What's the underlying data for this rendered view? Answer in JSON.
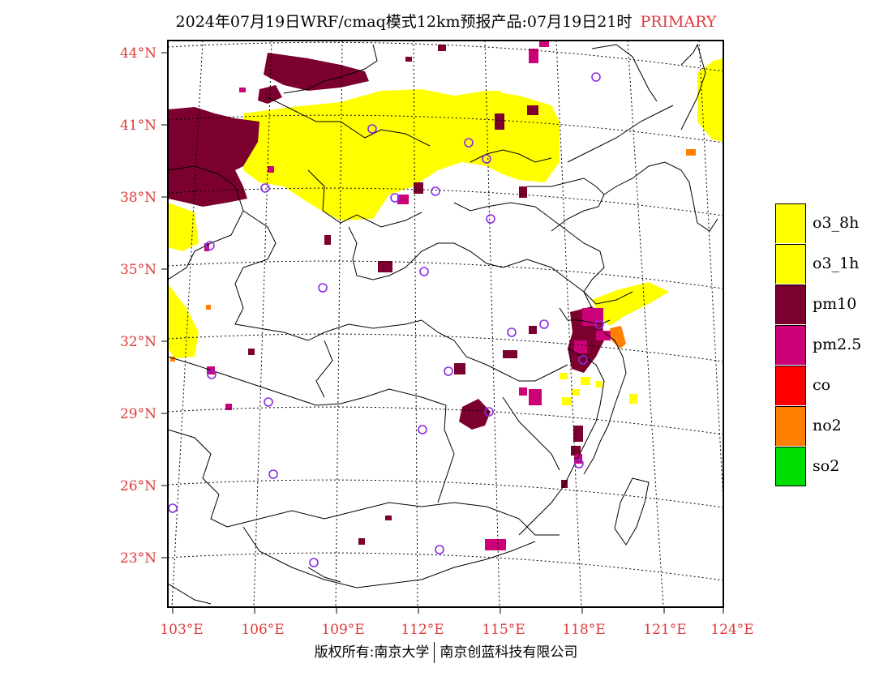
{
  "title": {
    "text": "2024年07月19日WRF/cmaq模式12km预报产品:07月19日21时",
    "tag": "PRIMARY"
  },
  "axes": {
    "lat_labels": [
      "44°N",
      "41°N",
      "38°N",
      "35°N",
      "32°N",
      "29°N",
      "26°N",
      "23°N"
    ],
    "lon_labels": [
      "103°E",
      "106°E",
      "109°E",
      "112°E",
      "115°E",
      "118°E",
      "121°E",
      "124°E"
    ],
    "label_color": "#e03a3a"
  },
  "legend": [
    {
      "label": "o3_8h",
      "color": "#ffff00"
    },
    {
      "label": "o3_1h",
      "color": "#ffff00"
    },
    {
      "label": "pm10",
      "color": "#7b0030"
    },
    {
      "label": "pm2.5",
      "color": "#cc0077"
    },
    {
      "label": "co",
      "color": "#ff0000"
    },
    {
      "label": "no2",
      "color": "#ff7f00"
    },
    {
      "label": "so2",
      "color": "#00dd00"
    }
  ],
  "footer": {
    "left": "版权所有:南京大学",
    "right": "南京创蓝科技有限公司"
  },
  "colors": {
    "o3": "#ffff00",
    "pm10": "#7b0030",
    "pm25": "#cc0077",
    "no2": "#ff7f00",
    "station": "#8a2be2"
  }
}
